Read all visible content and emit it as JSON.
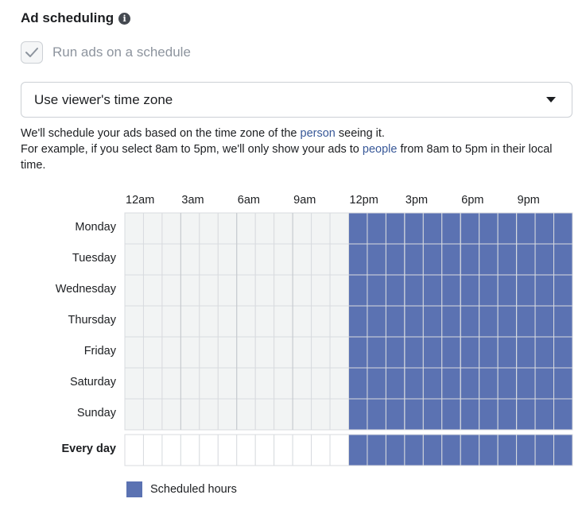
{
  "title": "Ad scheduling",
  "info_icon": "info-icon",
  "checkbox": {
    "label": "Run ads on a schedule",
    "checked": true,
    "disabled": true
  },
  "timezone": {
    "value": "Use viewer's time zone"
  },
  "description": {
    "line1_before": "We'll schedule your ads based on the time zone of the ",
    "line1_link": "person",
    "line1_after": " seeing it.",
    "line2_before": "For example, if you select 8am to 5pm, we'll only show your ads to ",
    "line2_link": "people",
    "line2_after": " from 8am to 5pm in their local time."
  },
  "schedule": {
    "hour_labels": [
      "12am",
      "3am",
      "6am",
      "9am",
      "12pm",
      "3pm",
      "6pm",
      "9pm"
    ],
    "days": [
      "Monday",
      "Tuesday",
      "Wednesday",
      "Thursday",
      "Friday",
      "Saturday",
      "Sunday"
    ],
    "every_day_label": "Every day",
    "scheduled_start_hour": 12,
    "scheduled_end_hour": 24,
    "colors": {
      "scheduled": "#5b72b2",
      "unscheduled": "#f2f4f4",
      "grid_line": "#d8dbdf",
      "grid_line_major": "#c4c8cc"
    }
  },
  "legend": {
    "label": "Scheduled hours"
  }
}
